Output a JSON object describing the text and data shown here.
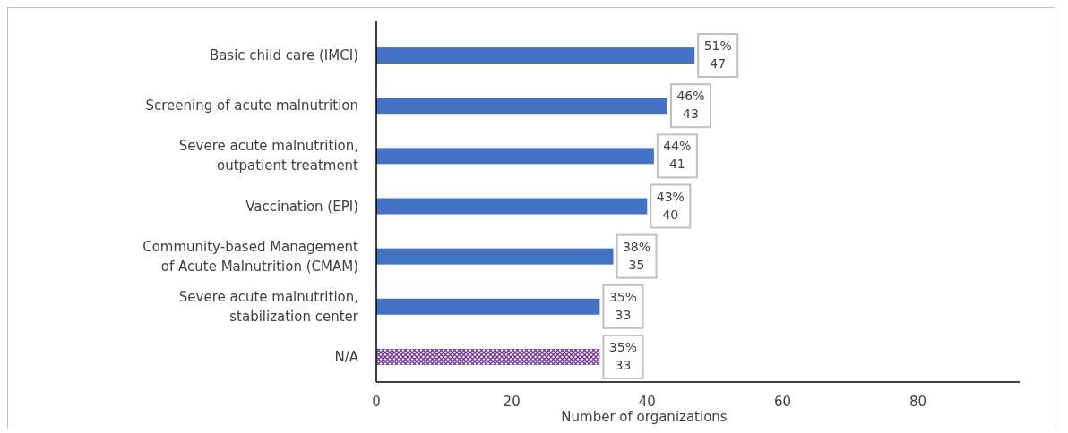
{
  "chart_data": {
    "type": "bar",
    "orientation": "horizontal",
    "xlabel": "Number of organizations",
    "categories": [
      "Basic child care (IMCI)",
      "Screening of acute malnutrition",
      "Severe acute malnutrition,\noutpatient treatment",
      "Vaccination (EPI)",
      "Community-based Management\nof Acute Malnutrition (CMAM)",
      "Severe acute malnutrition,\nstabilization center",
      "N/A"
    ],
    "values": [
      47,
      43,
      41,
      40,
      35,
      33,
      33
    ],
    "colors": [
      "#4472c4",
      "#4472c4",
      "#4472c4",
      "#4472c4",
      "#4472c4",
      "#4472c4",
      "#7030a0"
    ],
    "value_labels": [
      "51%\n47",
      "46%\n43",
      "44%\n41",
      "43%\n40",
      "38%\n35",
      "35%\n33",
      "35%\n33"
    ],
    "xlim": [
      0,
      95
    ],
    "xticks": [
      0,
      20,
      40,
      60,
      80
    ],
    "grid": false
  }
}
